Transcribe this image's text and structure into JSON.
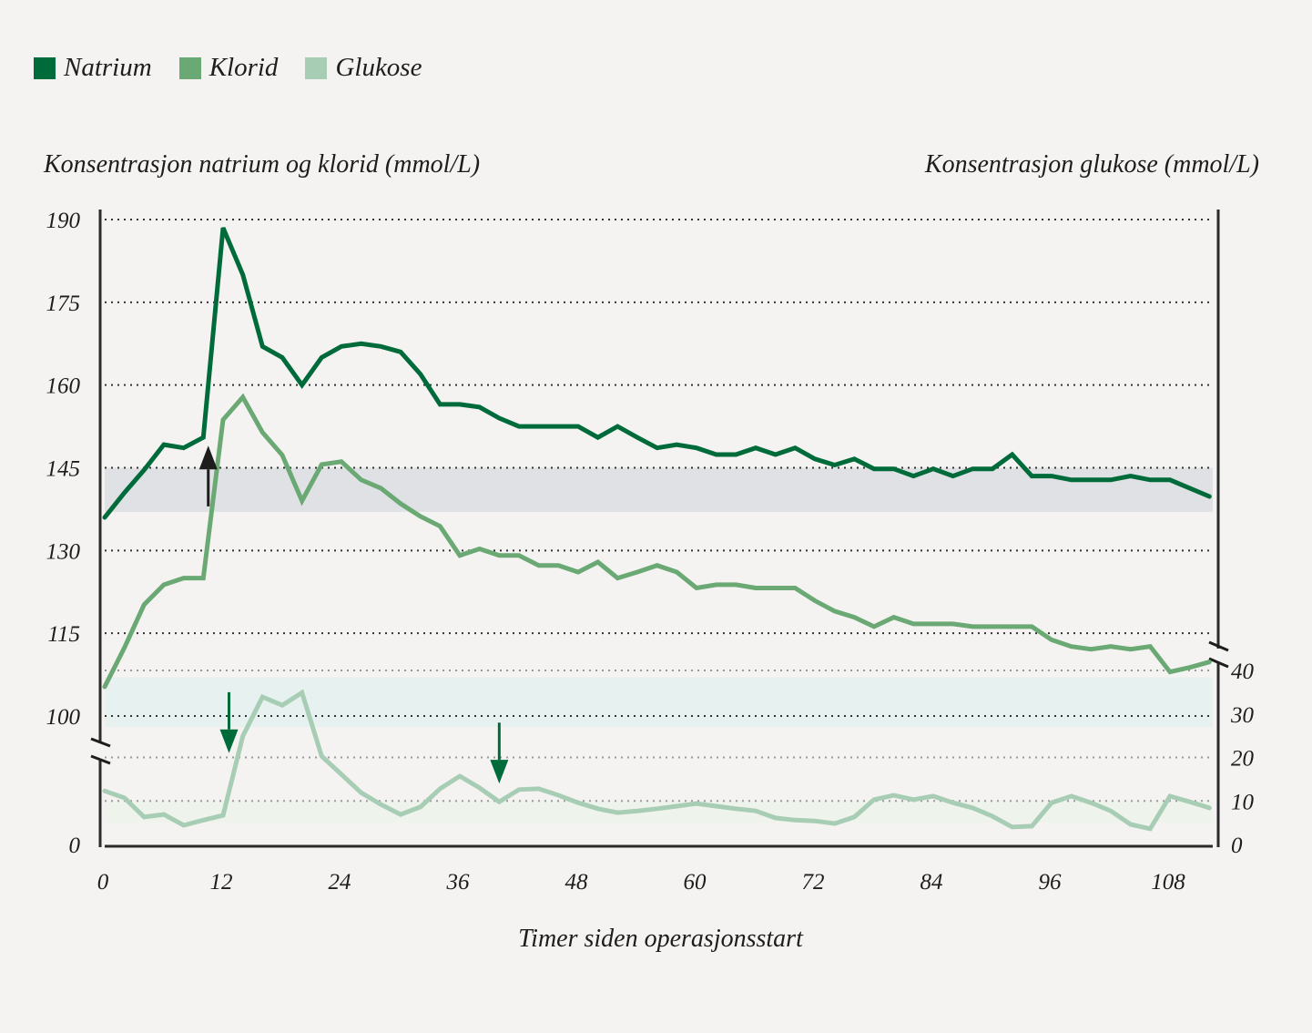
{
  "chart_data": {
    "type": "line",
    "xlabel": "Timer siden operasjonsstart",
    "ylabel_left": "Konsentrasjon natrium og klorid (mmol/L)",
    "ylabel_right": "Konsentrasjon glukose (mmol/L)",
    "x_ticks": [
      0,
      12,
      24,
      36,
      48,
      60,
      72,
      84,
      96,
      108
    ],
    "y_left_ticks": [
      190,
      175,
      160,
      145,
      130,
      115,
      100,
      0
    ],
    "y_right_ticks": [
      40,
      30,
      20,
      10,
      0
    ],
    "y_left_range": [
      100,
      190
    ],
    "y_right_range": [
      0,
      40
    ],
    "axis_breaks": "left axis broken between 0 and 100; right axis broken above 40",
    "grid": "horizontal dotted",
    "legend_placement": "top-left",
    "x": [
      0,
      2,
      4,
      6,
      8,
      10,
      12,
      14,
      16,
      18,
      20,
      22,
      24,
      26,
      28,
      30,
      32,
      34,
      36,
      38,
      40,
      42,
      44,
      46,
      48,
      50,
      52,
      54,
      56,
      58,
      60,
      62,
      64,
      66,
      68,
      70,
      72,
      74,
      76,
      78,
      80,
      82,
      84,
      86,
      88,
      90,
      92,
      94,
      96,
      98,
      100,
      102,
      104,
      106,
      108,
      110,
      112
    ],
    "series": [
      {
        "name": "Natrium",
        "axis": "left",
        "color": "#006b3a",
        "values": [
          136,
          140.5,
          144.6,
          149.2,
          148.6,
          150.5,
          188.5,
          180,
          167,
          165,
          160,
          165,
          167,
          167.5,
          167,
          166,
          162,
          156.5,
          156.5,
          156,
          154,
          152.5,
          152.5,
          152.5,
          152.5,
          150.5,
          152.5,
          150.5,
          148.6,
          149.2,
          148.6,
          147.4,
          147.4,
          148.6,
          147.4,
          148.6,
          146.6,
          145.5,
          146.6,
          144.8,
          144.8,
          143.5,
          144.8,
          143.5,
          144.8,
          144.8,
          147.4,
          143.5,
          143.5,
          142.8,
          142.8,
          142.8,
          143.5,
          142.8,
          142.8,
          141.3,
          139.8
        ]
      },
      {
        "name": "Klorid",
        "axis": "left",
        "color": "#6aa874",
        "values": [
          105.3,
          112.4,
          120.2,
          123.8,
          125,
          125,
          153.7,
          157.8,
          151.4,
          147.3,
          139,
          145.6,
          146.1,
          142.8,
          141.3,
          138.5,
          136.2,
          134.4,
          129.1,
          130.3,
          129.1,
          129.1,
          127.3,
          127.3,
          126.1,
          127.9,
          125,
          126.1,
          127.3,
          126.1,
          123.2,
          123.8,
          123.8,
          123.2,
          123.2,
          123.2,
          120.9,
          119,
          117.9,
          116.2,
          117.9,
          116.7,
          116.7,
          116.7,
          116.2,
          116.2,
          116.2,
          116.2,
          113.8,
          112.6,
          112.1,
          112.6,
          112.1,
          112.6,
          108,
          108.8,
          109.8
        ]
      },
      {
        "name": "Glukose",
        "axis": "right",
        "color": "#a8cdb5",
        "values": [
          12.3,
          10.7,
          6.3,
          6.9,
          4.4,
          5.6,
          6.7,
          24.9,
          33.9,
          32,
          34.9,
          20.3,
          16.1,
          11.9,
          9.2,
          6.9,
          8.6,
          12.8,
          15.7,
          13,
          9.8,
          12.6,
          12.8,
          11.3,
          9.6,
          8.2,
          7.3,
          7.7,
          8.2,
          8.8,
          9.4,
          8.8,
          8.2,
          7.7,
          6.1,
          5.6,
          5.4,
          4.8,
          6.3,
          10.3,
          11.3,
          10.3,
          11.1,
          9.6,
          8.4,
          6.5,
          4,
          4.2,
          9.6,
          11.1,
          9.6,
          7.7,
          4.6,
          3.6,
          11.1,
          9.8,
          8.4
        ]
      }
    ],
    "reference_bands": [
      {
        "axis": "left",
        "range": [
          137,
          145
        ],
        "color": "#e0e1e4"
      },
      {
        "axis": "left",
        "range": [
          98,
          107
        ],
        "color": "#e7f1ef"
      },
      {
        "axis": "right",
        "range": [
          5,
          10
        ],
        "color": "#eef3ec"
      }
    ],
    "annotations": [
      {
        "type": "arrow-up",
        "x": 10.5,
        "color": "#1d1d1b",
        "axis": "left",
        "from": 138,
        "to": 149
      },
      {
        "type": "arrow-down",
        "x": 12.6,
        "color": "#006b3a",
        "axis": "right",
        "from": 35,
        "to": 21
      },
      {
        "type": "arrow-down",
        "x": 40,
        "color": "#006b3a",
        "axis": "right",
        "from": 28,
        "to": 14
      }
    ]
  }
}
